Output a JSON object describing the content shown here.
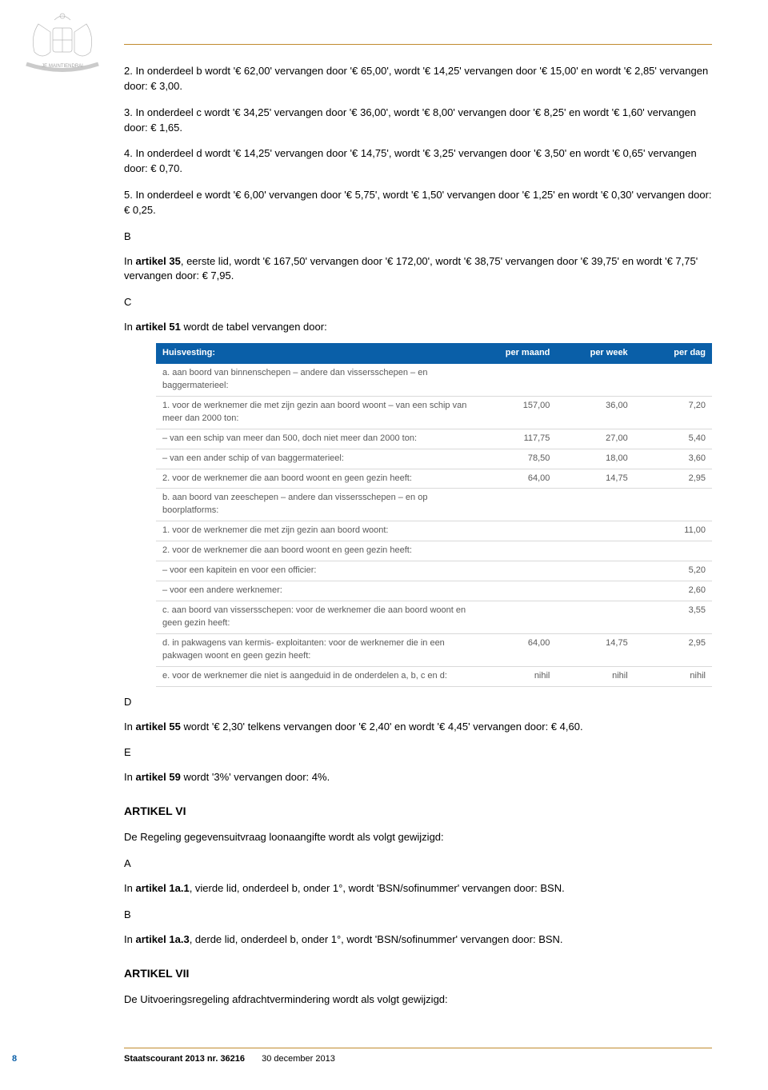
{
  "crest_motto": "JE MAINTIENDRAI",
  "paragraphs": {
    "p2": "2. In onderdeel b wordt '€ 62,00' vervangen door '€ 65,00', wordt '€ 14,25' vervangen door '€ 15,00' en wordt '€ 2,85' vervangen door: € 3,00.",
    "p3": "3. In onderdeel c wordt '€ 34,25' vervangen door '€ 36,00', wordt '€ 8,00' vervangen door '€ 8,25' en wordt '€ 1,60' vervangen door: € 1,65.",
    "p4": "4. In onderdeel d wordt '€ 14,25' vervangen door '€ 14,75', wordt '€ 3,25' vervangen door '€ 3,50' en wordt '€ 0,65' vervangen door: € 0,70.",
    "p5": "5. In onderdeel e wordt '€ 6,00' vervangen door '€ 5,75', wordt '€ 1,50' vervangen door '€ 1,25' en wordt '€ 0,30' vervangen door: € 0,25."
  },
  "sectionB": {
    "letter": "B",
    "prefix": "In ",
    "bold": "artikel 35",
    "rest": ", eerste lid, wordt '€ 167,50' vervangen door '€ 172,00', wordt '€ 38,75' vervangen door '€ 39,75' en wordt '€ 7,75' vervangen door: € 7,95."
  },
  "sectionC": {
    "letter": "C",
    "prefix": "In ",
    "bold": "artikel 51",
    "rest": " wordt de tabel vervangen door:"
  },
  "table": {
    "headers": [
      "Huisvesting:",
      "per maand",
      "per week",
      "per dag"
    ],
    "header_bg": "#0a5fa8",
    "header_color": "#ffffff",
    "row_border": "#d9d9d9",
    "text_color": "#5a5a5a",
    "col_widths": [
      "58%",
      "14%",
      "14%",
      "14%"
    ],
    "rows": [
      {
        "desc": "a. aan boord van binnenschepen – andere dan vissersschepen – en baggermaterieel:",
        "m": "",
        "w": "",
        "d": ""
      },
      {
        "desc": "1. voor de werknemer die met zijn gezin aan boord woont – van een schip van meer dan 2000 ton:",
        "m": "157,00",
        "w": "36,00",
        "d": "7,20"
      },
      {
        "desc": "– van een schip van meer dan 500, doch niet meer dan 2000 ton:",
        "m": "117,75",
        "w": "27,00",
        "d": "5,40"
      },
      {
        "desc": "– van een ander schip of van baggermaterieel:",
        "m": "78,50",
        "w": "18,00",
        "d": "3,60"
      },
      {
        "desc": "2. voor de werknemer die aan boord woont en geen gezin heeft:",
        "m": "64,00",
        "w": "14,75",
        "d": "2,95"
      },
      {
        "desc": "b. aan boord van zeeschepen – andere dan vissersschepen – en op boorplatforms:",
        "m": "",
        "w": "",
        "d": ""
      },
      {
        "desc": "1. voor de werknemer die met zijn gezin aan boord woont:",
        "m": "",
        "w": "",
        "d": "11,00"
      },
      {
        "desc": "2. voor de werknemer die aan boord woont en geen gezin heeft:",
        "m": "",
        "w": "",
        "d": ""
      },
      {
        "desc": "– voor een kapitein en voor een officier:",
        "m": "",
        "w": "",
        "d": "5,20"
      },
      {
        "desc": "– voor een andere werknemer:",
        "m": "",
        "w": "",
        "d": "2,60"
      },
      {
        "desc": "c. aan boord van vissersschepen: voor de werknemer die aan boord woont en geen gezin heeft:",
        "m": "",
        "w": "",
        "d": "3,55"
      },
      {
        "desc": "d. in pakwagens van kermis- exploitanten: voor de werknemer die in een pakwagen woont en geen gezin heeft:",
        "m": "64,00",
        "w": "14,75",
        "d": "2,95"
      },
      {
        "desc": "e. voor de werknemer die niet is aangeduid in de onderdelen a, b, c en d:",
        "m": "nihil",
        "w": "nihil",
        "d": "nihil"
      }
    ]
  },
  "sectionD": {
    "letter": "D",
    "prefix": "In ",
    "bold": "artikel 55",
    "rest": " wordt '€ 2,30' telkens vervangen door '€ 2,40' en wordt '€ 4,45' vervangen door: € 4,60."
  },
  "sectionE": {
    "letter": "E",
    "prefix": "In ",
    "bold": "artikel 59",
    "rest": " wordt '3%' vervangen door: 4%."
  },
  "artVI": {
    "title": "ARTIKEL VI",
    "intro": "De Regeling gegevensuitvraag loonaangifte wordt als volgt gewijzigd:",
    "A": {
      "letter": "A",
      "prefix": "In ",
      "bold": "artikel 1a.1",
      "rest": ", vierde lid, onderdeel b, onder 1°, wordt 'BSN/sofinummer' vervangen door: BSN."
    },
    "B": {
      "letter": "B",
      "prefix": "In ",
      "bold": "artikel 1a.3",
      "rest": ", derde lid, onderdeel b, onder 1°, wordt 'BSN/sofinummer' vervangen door: BSN."
    }
  },
  "artVII": {
    "title": "ARTIKEL VII",
    "intro": "De Uitvoeringsregeling afdrachtvermindering wordt als volgt gewijzigd:"
  },
  "footer": {
    "page": "8",
    "publication": "Staatscourant 2013 nr. 36216",
    "date": "30 december 2013"
  }
}
